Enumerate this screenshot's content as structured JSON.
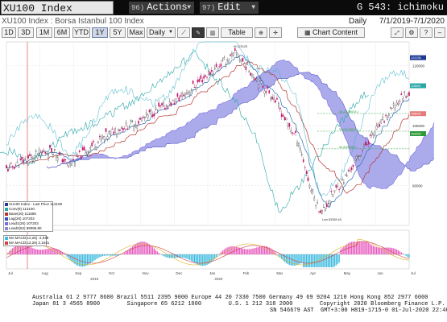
{
  "topbar": {
    "ticker": "XU100 Index",
    "actions_num": "96)",
    "actions_label": "Actions",
    "edit_num": "97)",
    "edit_label": "Edit",
    "right_title": "G 543: ichimoku"
  },
  "subbar": {
    "security": "XU100 Index : Borsa Istanbul 100 Index",
    "frequency": "Daily",
    "date_range": "7/1/2019-7/1/2020"
  },
  "toolbar": {
    "periods": [
      "1D",
      "3D",
      "1M",
      "6M",
      "YTD",
      "1Y",
      "5Y",
      "Max"
    ],
    "selected_period": "1Y",
    "interval": "Daily",
    "table_label": "Table",
    "chart_content_label": "Chart Content"
  },
  "chart_data": {
    "type": "line",
    "title": "",
    "x_tick_labels": [
      "Jul",
      "Aug",
      "Sep",
      "Oct",
      "Nov",
      "Dec",
      "Jan",
      "Feb",
      "Mar",
      "Apr",
      "May",
      "Jun",
      "Jul"
    ],
    "x_year_labels": [
      "2019",
      "2020"
    ],
    "y_tick_labels": [
      "120000",
      "105000",
      "90000"
    ],
    "price_annotations": {
      "high": "Hi 123125",
      "low": "Low 83358.46"
    },
    "right_axis_tags": [
      "122036",
      "115000",
      "108000",
      "103000"
    ],
    "fib_labels": [
      "38.2(108043.)",
      "50.0(103612.)",
      "61.8(99192.)"
    ],
    "legend": [
      {
        "label": "XU100 Index - Last Price 113109",
        "color": "#1f3a93"
      },
      {
        "label": "Conv(9) 113100",
        "color": "#2aa6a6"
      },
      {
        "label": "Base(26) 111585",
        "color": "#b5362f"
      },
      {
        "label": "Lag(26) 107203",
        "color": "#2f4fb2"
      },
      {
        "label": "Lead1(26) 107203",
        "color": "#7a6be0"
      },
      {
        "label": "Lead2(52) 99096.80",
        "color": "#8a8ad8"
      }
    ],
    "sub_legend": [
      {
        "label": "MA MACD(12,26) -2,049",
        "color": "#3dbbe0"
      },
      {
        "label": "MA MACD(12,26) 2,1041",
        "color": "#d04040"
      }
    ]
  },
  "footer": {
    "line1": "Australia 61 2 9777 8600 Brazil 5511 2395 9000 Europe 44 20 7330 7500 Germany 49 69 9204 1210 Hong Kong 852 2977 6000",
    "line2": "Japan 81 3 4565 8900        Singapore 65 6212 1000        U.S. 1 212 318 2000        Copyright 2020 Bloomberg Finance L.P.",
    "line3": "SN 546679 AST  GMT+3:00 H819-1715-0 01-Jul-2020 22:46:07"
  }
}
